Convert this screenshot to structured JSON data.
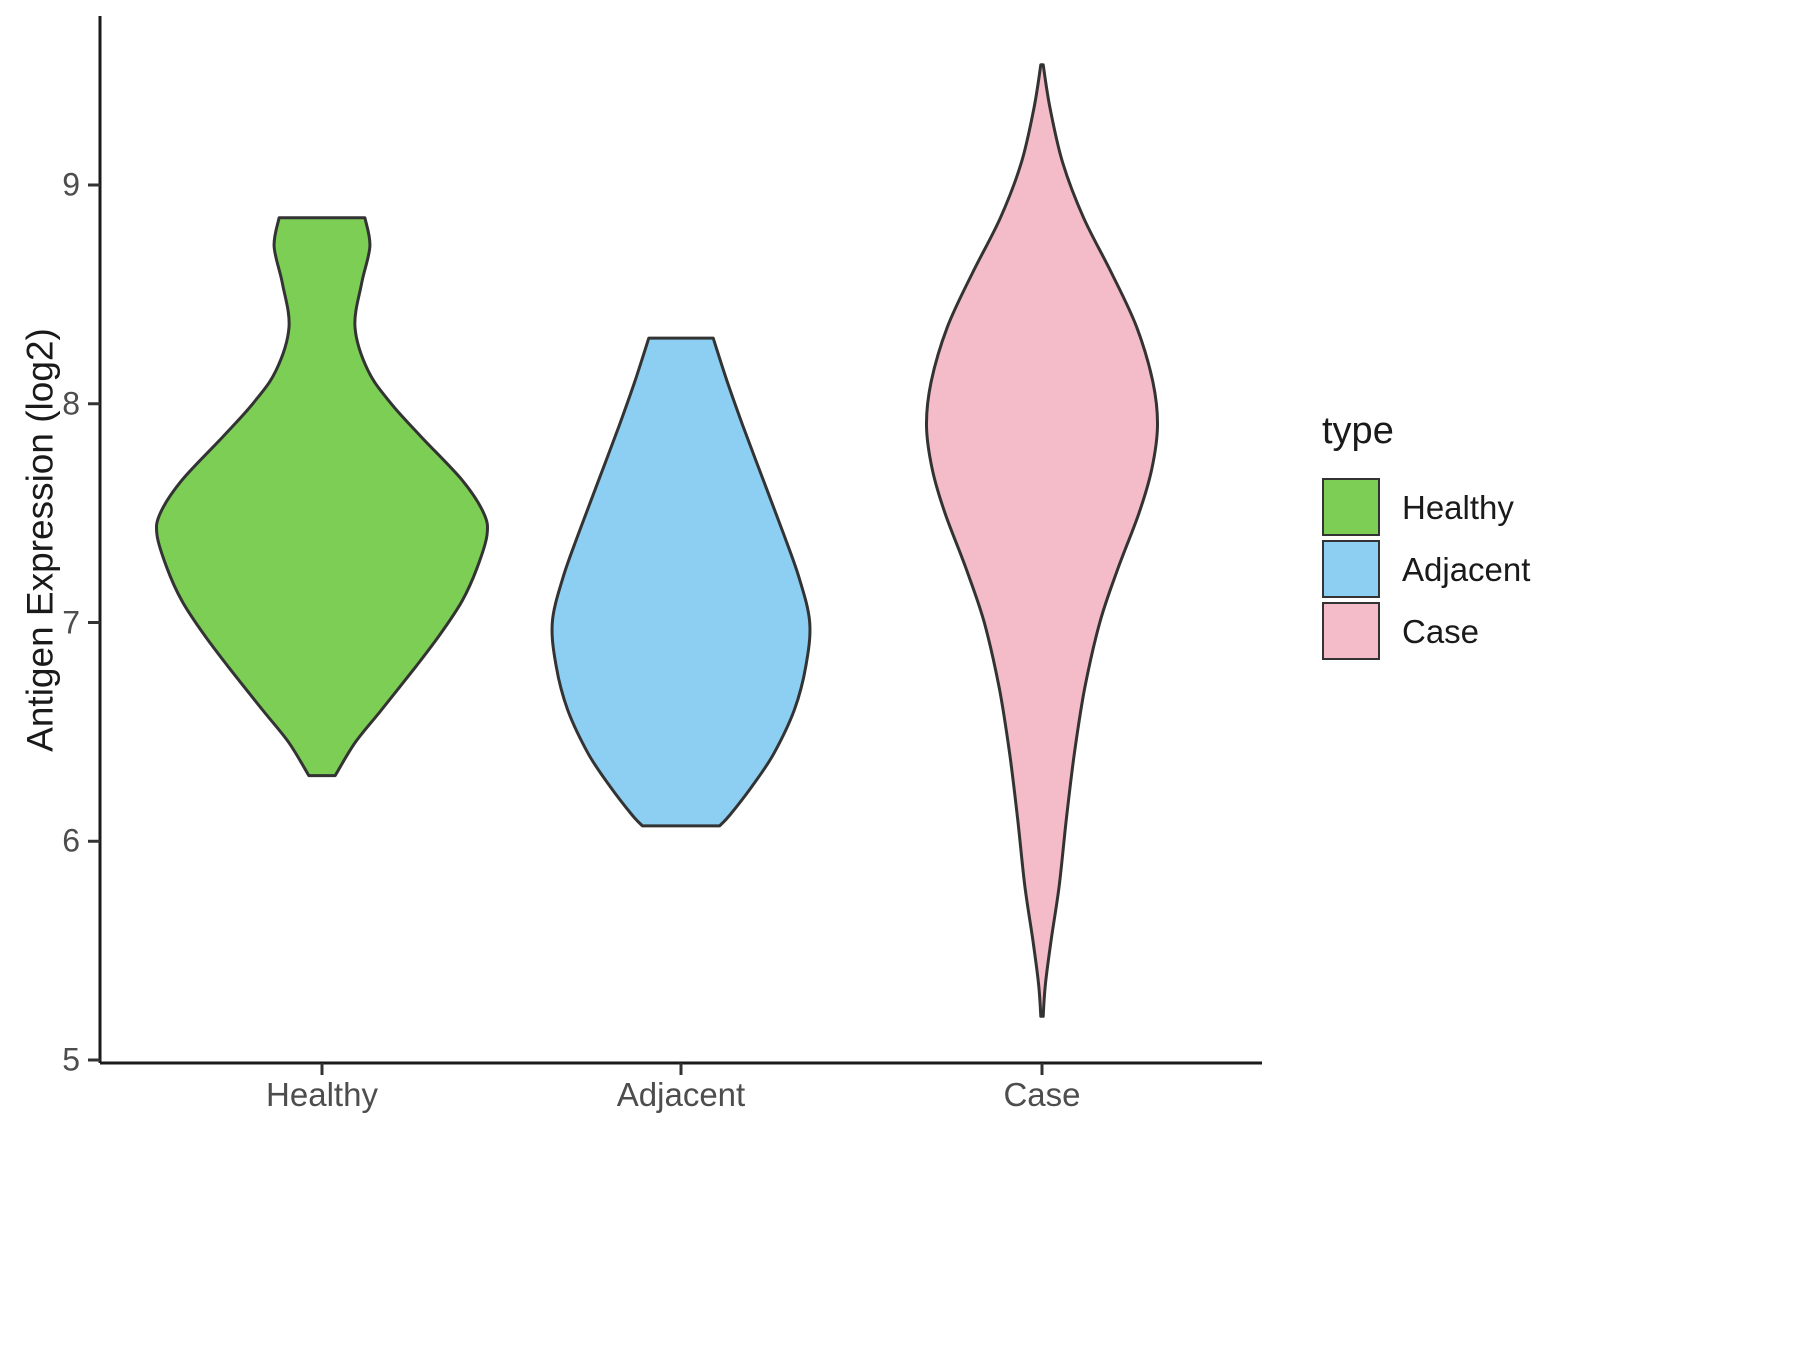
{
  "figure": {
    "background": "#ffffff",
    "axis_color": "#1a1a1a",
    "tick_color": "#333333",
    "tick_label_color": "#4d4d4d",
    "outline_color": "#333333"
  },
  "chart_data": {
    "type": "violin",
    "title": "",
    "xlabel": "",
    "ylabel": "Antigen Expression (log2)",
    "ylim": [
      5,
      9.8
    ],
    "yticks": [
      "5",
      "6",
      "7",
      "8",
      "9"
    ],
    "categories": [
      "Healthy",
      "Adjacent",
      "Case"
    ],
    "legend": {
      "title": "type",
      "position": "right",
      "entries": [
        {
          "label": "Healthy",
          "color": "#7CCE55"
        },
        {
          "label": "Adjacent",
          "color": "#8DCFF2"
        },
        {
          "label": "Case",
          "color": "#F4BCC8"
        }
      ]
    },
    "series": [
      {
        "name": "Healthy",
        "color": "#7CCE55",
        "y_min": 6.3,
        "y_max": 8.85,
        "width_rel": 1.0,
        "cap_top": "flat",
        "cap_bottom": "flat",
        "profile": [
          {
            "y": 8.85,
            "w": 0.26
          },
          {
            "y": 8.72,
            "w": 0.29
          },
          {
            "y": 8.55,
            "w": 0.24
          },
          {
            "y": 8.35,
            "w": 0.2
          },
          {
            "y": 8.15,
            "w": 0.28
          },
          {
            "y": 8.0,
            "w": 0.42
          },
          {
            "y": 7.85,
            "w": 0.6
          },
          {
            "y": 7.65,
            "w": 0.85
          },
          {
            "y": 7.5,
            "w": 0.98
          },
          {
            "y": 7.4,
            "w": 1.0
          },
          {
            "y": 7.25,
            "w": 0.94
          },
          {
            "y": 7.1,
            "w": 0.85
          },
          {
            "y": 6.95,
            "w": 0.72
          },
          {
            "y": 6.8,
            "w": 0.57
          },
          {
            "y": 6.6,
            "w": 0.36
          },
          {
            "y": 6.45,
            "w": 0.2
          },
          {
            "y": 6.3,
            "w": 0.08
          }
        ]
      },
      {
        "name": "Adjacent",
        "color": "#8DCFF2",
        "y_min": 6.07,
        "y_max": 8.3,
        "width_rel": 0.78,
        "cap_top": "flat",
        "cap_bottom": "flat",
        "profile": [
          {
            "y": 8.3,
            "w": 0.25
          },
          {
            "y": 8.1,
            "w": 0.36
          },
          {
            "y": 7.9,
            "w": 0.48
          },
          {
            "y": 7.65,
            "w": 0.64
          },
          {
            "y": 7.4,
            "w": 0.8
          },
          {
            "y": 7.2,
            "w": 0.92
          },
          {
            "y": 7.0,
            "w": 1.0
          },
          {
            "y": 6.8,
            "w": 0.97
          },
          {
            "y": 6.6,
            "w": 0.88
          },
          {
            "y": 6.4,
            "w": 0.72
          },
          {
            "y": 6.25,
            "w": 0.55
          },
          {
            "y": 6.12,
            "w": 0.38
          },
          {
            "y": 6.07,
            "w": 0.3
          }
        ]
      },
      {
        "name": "Case",
        "color": "#F4BCC8",
        "y_min": 5.2,
        "y_max": 9.55,
        "width_rel": 0.7,
        "cap_top": "point",
        "cap_bottom": "point",
        "profile": [
          {
            "y": 9.55,
            "w": 0.01
          },
          {
            "y": 9.35,
            "w": 0.07
          },
          {
            "y": 9.1,
            "w": 0.18
          },
          {
            "y": 8.85,
            "w": 0.36
          },
          {
            "y": 8.6,
            "w": 0.6
          },
          {
            "y": 8.35,
            "w": 0.82
          },
          {
            "y": 8.1,
            "w": 0.96
          },
          {
            "y": 7.9,
            "w": 1.0
          },
          {
            "y": 7.7,
            "w": 0.95
          },
          {
            "y": 7.5,
            "w": 0.84
          },
          {
            "y": 7.25,
            "w": 0.66
          },
          {
            "y": 7.0,
            "w": 0.5
          },
          {
            "y": 6.7,
            "w": 0.37
          },
          {
            "y": 6.4,
            "w": 0.28
          },
          {
            "y": 6.1,
            "w": 0.21
          },
          {
            "y": 5.8,
            "w": 0.15
          },
          {
            "y": 5.55,
            "w": 0.08
          },
          {
            "y": 5.35,
            "w": 0.03
          },
          {
            "y": 5.2,
            "w": 0.01
          }
        ]
      }
    ]
  }
}
